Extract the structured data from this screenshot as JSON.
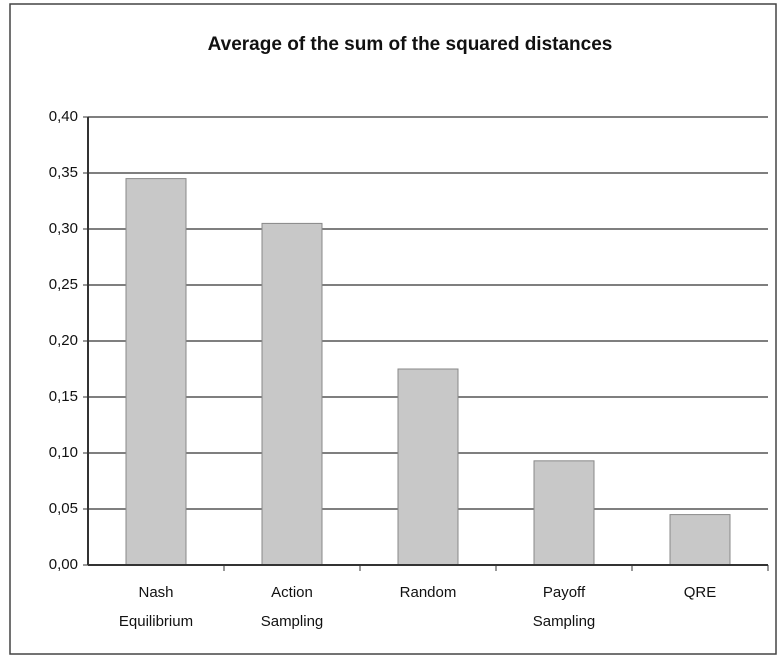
{
  "chart_data": {
    "type": "bar",
    "title": "Average of the sum of the squared distances",
    "categories": [
      [
        "Nash",
        "Equilibrium"
      ],
      [
        "Action",
        "Sampling"
      ],
      [
        "Random"
      ],
      [
        "Payoff",
        "Sampling"
      ],
      [
        "QRE"
      ]
    ],
    "values": [
      0.345,
      0.305,
      0.175,
      0.093,
      0.045
    ],
    "color": "#c8c8c8",
    "ylim": [
      0,
      0.4
    ],
    "yticks": [
      {
        "value": 0,
        "label": "0,00"
      },
      {
        "value": 0.05,
        "label": "0,05"
      },
      {
        "value": 0.1,
        "label": "0,10"
      },
      {
        "value": 0.15,
        "label": "0,15"
      },
      {
        "value": 0.2,
        "label": "0,20"
      },
      {
        "value": 0.25,
        "label": "0,25"
      },
      {
        "value": 0.3,
        "label": "0,30"
      },
      {
        "value": 0.35,
        "label": "0,35"
      },
      {
        "value": 0.4,
        "label": "0,40"
      }
    ],
    "grid": true
  }
}
